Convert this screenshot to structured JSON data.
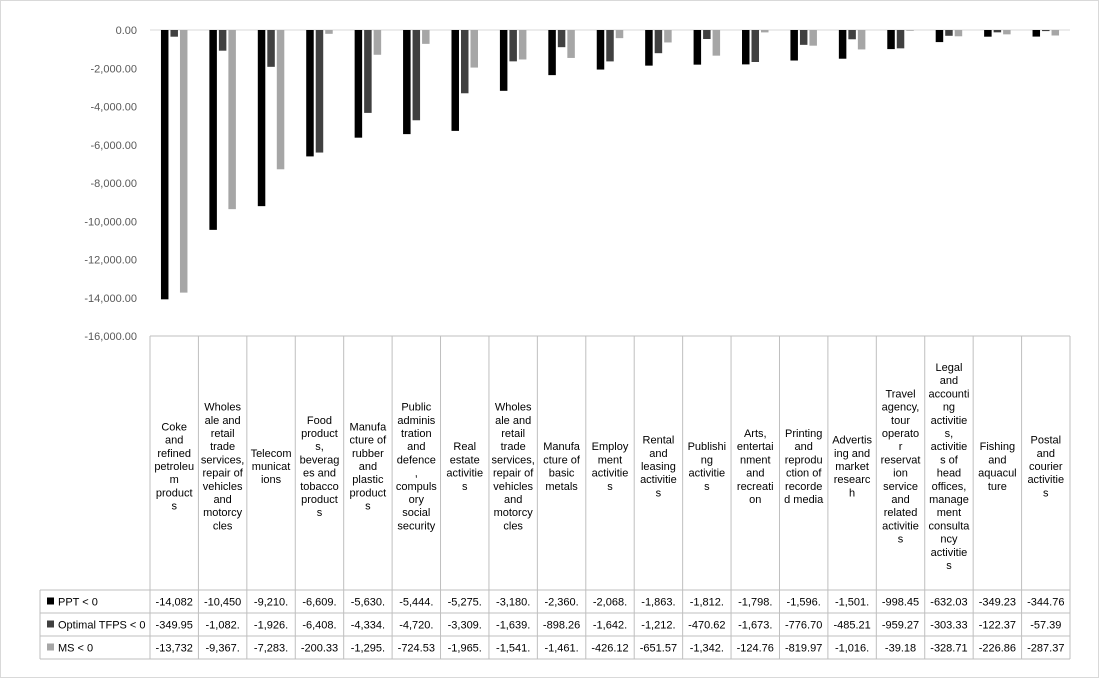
{
  "chart_data": {
    "type": "bar",
    "title": "",
    "xlabel": "",
    "ylabel": "",
    "ylim": [
      -16000,
      0
    ],
    "yticks": [
      0,
      -2000,
      -4000,
      -6000,
      -8000,
      -10000,
      -12000,
      -14000,
      -16000
    ],
    "ytick_labels": [
      "0.00",
      "-2,000.00",
      "-4,000.00",
      "-6,000.00",
      "-8,000.00",
      "-10,000.00",
      "-12,000.00",
      "-14,000.00",
      "-16,000.00"
    ],
    "grid": false,
    "legend_position": "bottom-left (data table)",
    "categories": [
      "Coke and refined petroleum products",
      "Wholesale and retail trade services, repair of vehicles and motorcycles",
      "Telecommunications",
      "Food products, beverages and tobacco products",
      "Manufacture of rubber and plastic products",
      "Public administration and defence, compulsory social security",
      "Real estate activities",
      "Wholesale and retail trade services, repair of vehicles and motorcycles",
      "Manufacture of basic metals",
      "Employment activities",
      "Rental and leasing activities",
      "Publishing activities",
      "Arts, entertainment and recreation",
      "Printing and reproduction of recorded media",
      "Advertising and market research",
      "Travel agency, tour operator reservation service and related activities",
      "Legal and accounting activities, activities of head offices, management consultancy activities",
      "Fishing and aquaculture",
      "Postal and courier activities"
    ],
    "category_lines": [
      [
        "Coke",
        "and",
        "refined",
        "petroleu",
        "m",
        "product",
        "s"
      ],
      [
        "Wholes",
        "ale and",
        "retail",
        "trade",
        "services,",
        "repair of",
        "vehicles",
        "and",
        "motorcy",
        "cles"
      ],
      [
        "Telecom",
        "municat",
        "ions"
      ],
      [
        "Food",
        "product",
        "s,",
        "beverag",
        "es and",
        "tobacco",
        "product",
        "s"
      ],
      [
        "Manufa",
        "cture of",
        "rubber",
        "and",
        "plastic",
        "product",
        "s"
      ],
      [
        "Public",
        "adminis",
        "tration",
        "and",
        "defence",
        ",",
        "compuls",
        "ory",
        "social",
        "security"
      ],
      [
        "Real",
        "estate",
        "activitie",
        "s"
      ],
      [
        "Wholes",
        "ale and",
        "retail",
        "trade",
        "services,",
        "repair of",
        "vehicles",
        "and",
        "motorcy",
        "cles"
      ],
      [
        "Manufa",
        "cture of",
        "basic",
        "metals"
      ],
      [
        "Employ",
        "ment",
        "activitie",
        "s"
      ],
      [
        "Rental",
        "and",
        "leasing",
        "activitie",
        "s"
      ],
      [
        "Publishi",
        "ng",
        "activitie",
        "s"
      ],
      [
        "Arts,",
        "entertai",
        "nment",
        "and",
        "recreati",
        "on"
      ],
      [
        "Printing",
        "and",
        "reprodu",
        "ction of",
        "recorde",
        "d media"
      ],
      [
        "Advertis",
        "ing and",
        "market",
        "researc",
        "h"
      ],
      [
        "Travel",
        "agency,",
        "tour",
        "operato",
        "r",
        "reservat",
        "ion",
        "service",
        "and",
        "related",
        "activitie",
        "s"
      ],
      [
        "Legal",
        "and",
        "accounti",
        "ng",
        "activitie",
        "s,",
        "activitie",
        "s of",
        "head",
        "offices,",
        "manage",
        "ment",
        "consulta",
        "ncy",
        "activitie",
        "s"
      ],
      [
        "Fishing",
        "and",
        "aquacul",
        "ture"
      ],
      [
        "Postal",
        "and",
        "courier",
        "activitie",
        "s"
      ]
    ],
    "series": [
      {
        "name": "PPT < 0",
        "color": "#000000",
        "values": [
          -14082,
          -10450,
          -9210,
          -6609,
          -5630,
          -5444,
          -5275,
          -3180,
          -2360,
          -2068,
          -1863,
          -1812,
          -1798,
          -1596,
          -1501,
          -998.45,
          -632.03,
          -349.23,
          -344.76
        ],
        "labels": [
          "-14,082",
          "-10,450",
          "-9,210.",
          "-6,609.",
          "-5,630.",
          "-5,444.",
          "-5,275.",
          "-3,180.",
          "-2,360.",
          "-2,068.",
          "-1,863.",
          "-1,812.",
          "-1,798.",
          "-1,596.",
          "-1,501.",
          "-998.45",
          "-632.03",
          "-349.23",
          "-344.76"
        ]
      },
      {
        "name": "Optimal TFPS < 0",
        "color": "#404040",
        "values": [
          -349.95,
          -1082,
          -1926,
          -6408,
          -4334,
          -4720,
          -3309,
          -1639,
          -898.26,
          -1642,
          -1212,
          -470.62,
          -1673,
          -776.7,
          -485.21,
          -959.27,
          -303.33,
          -122.37,
          -57.39
        ],
        "labels": [
          "-349.95",
          "-1,082.",
          "-1,926.",
          "-6,408.",
          "-4,334.",
          "-4,720.",
          "-3,309.",
          "-1,639.",
          "-898.26",
          "-1,642.",
          "-1,212.",
          "-470.62",
          "-1,673.",
          "-776.70",
          "-485.21",
          "-959.27",
          "-303.33",
          "-122.37",
          "-57.39"
        ]
      },
      {
        "name": "MS < 0",
        "color": "#a6a6a6",
        "values": [
          -13732,
          -9367,
          -7283,
          -200.33,
          -1295,
          -724.53,
          -1965,
          -1541,
          -1461,
          -426.12,
          -651.57,
          -1342,
          -124.76,
          -819.97,
          -1016,
          -39.18,
          -328.71,
          -226.86,
          -287.37
        ],
        "labels": [
          "-13,732",
          "-9,367.",
          "-7,283.",
          "-200.33",
          "-1,295.",
          "-724.53",
          "-1,965.",
          "-1,541.",
          "-1,461.",
          "-426.12",
          "-651.57",
          "-1,342.",
          "-124.76",
          "-819.97",
          "-1,016.",
          "-39.18",
          "-328.71",
          "-226.86",
          "-287.37"
        ]
      }
    ]
  }
}
